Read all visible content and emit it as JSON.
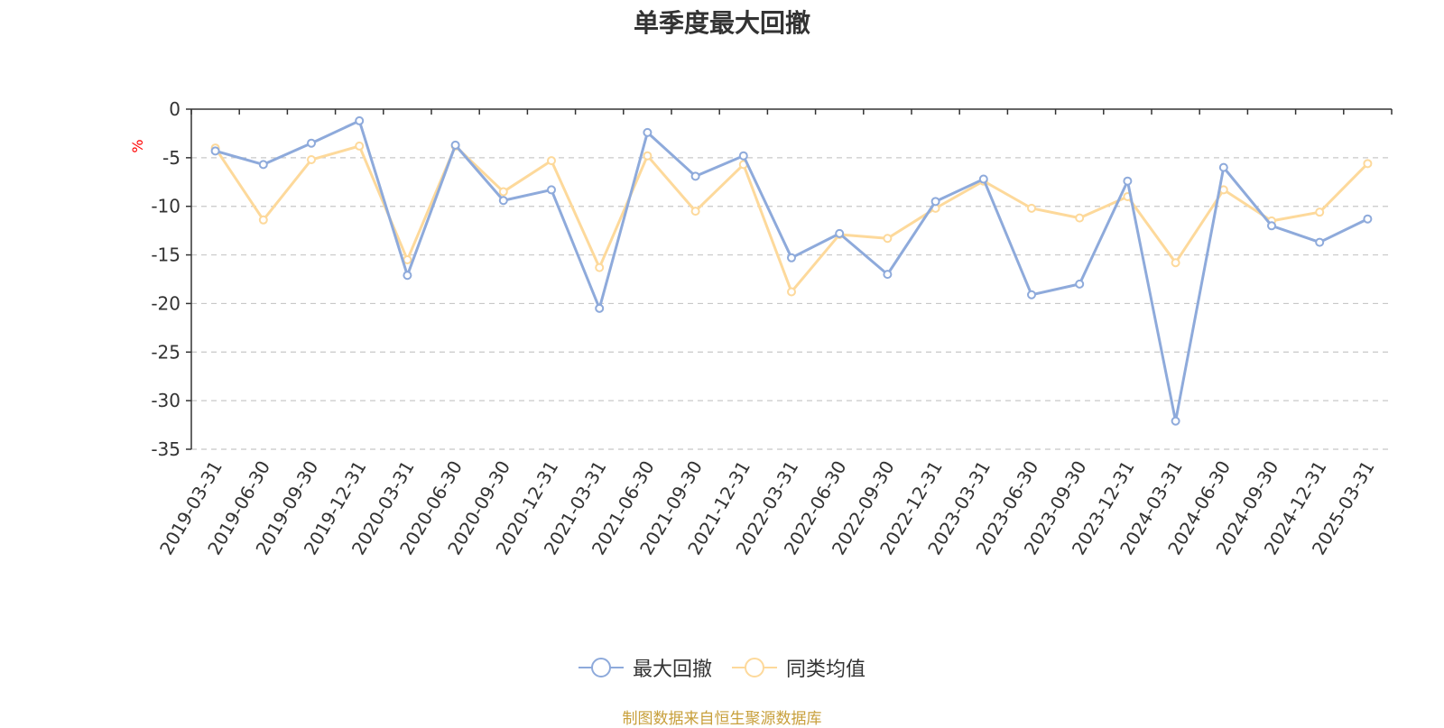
{
  "chart_data": {
    "type": "line",
    "title": "单季度最大回撤",
    "ylabel": "%",
    "ylim": [
      -35,
      0
    ],
    "yticks": [
      0,
      -5,
      -10,
      -15,
      -20,
      -25,
      -30,
      -35
    ],
    "grid": true,
    "legend_position": "bottom",
    "categories": [
      "2019-03-31",
      "2019-06-30",
      "2019-09-30",
      "2019-12-31",
      "2020-03-31",
      "2020-06-30",
      "2020-09-30",
      "2020-12-31",
      "2021-03-31",
      "2021-06-30",
      "2021-09-30",
      "2021-12-31",
      "2022-03-31",
      "2022-06-30",
      "2022-09-30",
      "2022-12-31",
      "2023-03-31",
      "2023-06-30",
      "2023-09-30",
      "2023-12-31",
      "2024-03-31",
      "2024-06-30",
      "2024-09-30",
      "2024-12-31",
      "2025-03-31"
    ],
    "series": [
      {
        "name": "最大回撤",
        "color": "#8eaadb",
        "values": [
          -4.3,
          -5.7,
          -3.5,
          -1.2,
          -17.1,
          -3.7,
          -9.4,
          -8.3,
          -20.5,
          -2.4,
          -6.9,
          -4.8,
          -15.3,
          -12.8,
          -17.0,
          -9.5,
          -7.2,
          -19.1,
          -18.0,
          -7.4,
          -32.1,
          -6.0,
          -12.0,
          -13.7,
          -11.3
        ]
      },
      {
        "name": "同类均值",
        "color": "#fdd99b",
        "values": [
          -4.0,
          -11.4,
          -5.2,
          -3.8,
          -15.5,
          -3.8,
          -8.5,
          -5.3,
          -16.3,
          -4.8,
          -10.5,
          -5.7,
          -18.8,
          -12.9,
          -13.3,
          -10.2,
          -7.4,
          -10.2,
          -11.2,
          -9.0,
          -15.8,
          -8.3,
          -11.5,
          -10.6,
          -5.6
        ]
      }
    ]
  },
  "source_text": "制图数据来自恒生聚源数据库"
}
